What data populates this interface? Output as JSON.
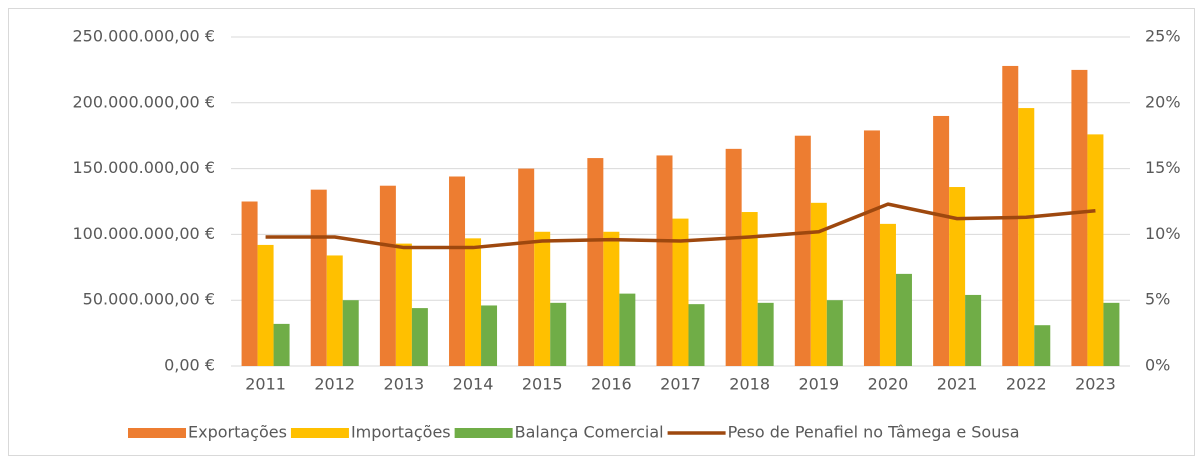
{
  "chart_data": {
    "type": "bar",
    "categories": [
      "2011",
      "2012",
      "2013",
      "2014",
      "2015",
      "2016",
      "2017",
      "2018",
      "2019",
      "2020",
      "2021",
      "2022",
      "2023"
    ],
    "series": [
      {
        "name": "Exportações",
        "color": "#ed7d31",
        "values": [
          125000000,
          134000000,
          137000000,
          144000000,
          150000000,
          158000000,
          160000000,
          165000000,
          175000000,
          179000000,
          190000000,
          228000000,
          225000000
        ]
      },
      {
        "name": "Importações",
        "color": "#ffc000",
        "values": [
          92000000,
          84000000,
          93000000,
          97000000,
          102000000,
          102000000,
          112000000,
          117000000,
          124000000,
          108000000,
          136000000,
          196000000,
          176000000
        ]
      },
      {
        "name": "Balança Comercial",
        "color": "#70ad47",
        "values": [
          32000000,
          50000000,
          44000000,
          46000000,
          48000000,
          55000000,
          47000000,
          48000000,
          50000000,
          70000000,
          54000000,
          31000000,
          48000000
        ]
      },
      {
        "name": "Peso de Penafiel no Tâmega e Sousa",
        "color": "#9e480e",
        "type": "line",
        "axis": "y2",
        "values": [
          9.8,
          9.8,
          9.0,
          9.0,
          9.5,
          9.6,
          9.5,
          9.8,
          10.2,
          12.3,
          11.2,
          11.3,
          11.8
        ]
      }
    ],
    "ylim": [
      0,
      250000000
    ],
    "yticks": [
      {
        "value": 0,
        "label": "0,00 €"
      },
      {
        "value": 50000000,
        "label": "50.000.000,00 €"
      },
      {
        "value": 100000000,
        "label": "100.000.000,00 €"
      },
      {
        "value": 150000000,
        "label": "150.000.000,00 €"
      },
      {
        "value": 200000000,
        "label": "200.000.000,00 €"
      },
      {
        "value": 250000000,
        "label": "250.000.000,00 €"
      }
    ],
    "y2lim": [
      0,
      25
    ],
    "y2ticks": [
      {
        "value": 0,
        "label": "0%"
      },
      {
        "value": 5,
        "label": "5%"
      },
      {
        "value": 10,
        "label": "10%"
      },
      {
        "value": 15,
        "label": "15%"
      },
      {
        "value": 20,
        "label": "20%"
      },
      {
        "value": 25,
        "label": "25%"
      }
    ],
    "grid": true,
    "legend": "bottom"
  }
}
